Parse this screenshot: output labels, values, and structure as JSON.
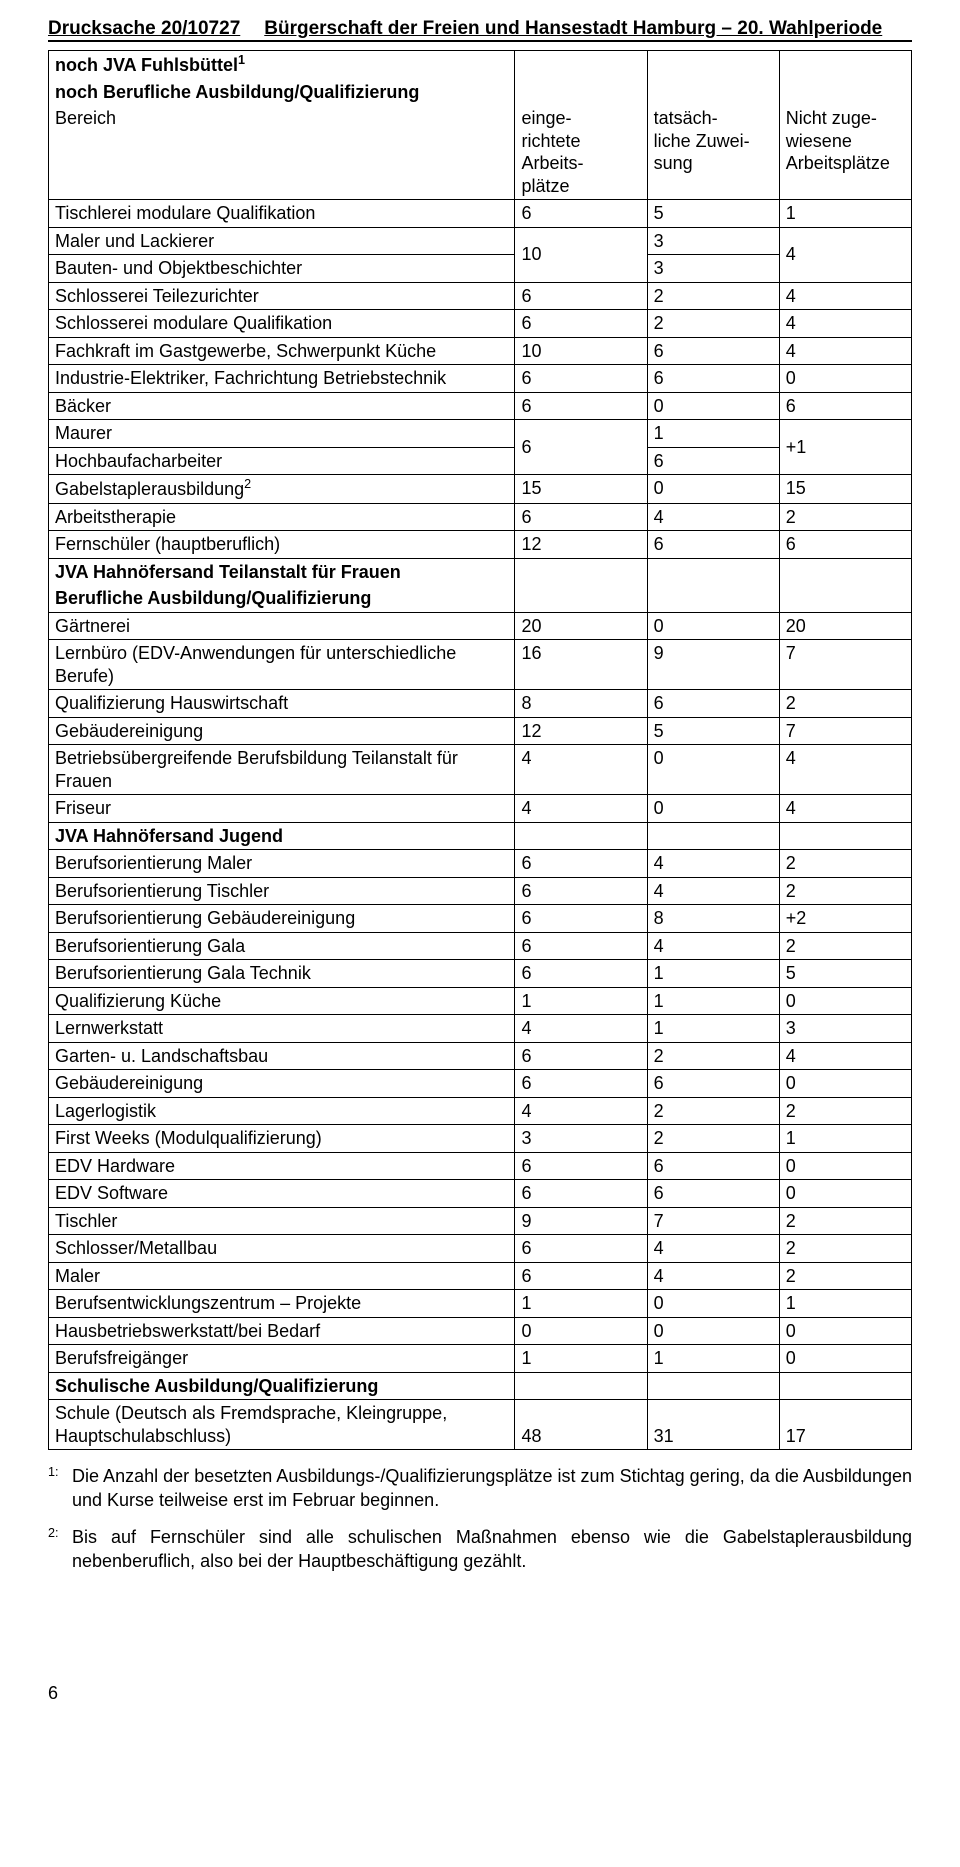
{
  "header": {
    "left": "Drucksache 20/10727",
    "right": "Bürgerschaft der Freien und Hansestadt Hamburg – 20. Wahlperiode"
  },
  "columns": {
    "c1": "Bereich",
    "c2": "einge-\nrichtete Arbeits-\nplätze",
    "c3": "tatsäch-\nliche Zuwei-\nsung",
    "c4": "Nicht zuge-\nwiesene Arbeitsplätze"
  },
  "section_titles": {
    "s1a": "noch JVA Fuhlsbüttel",
    "s1a_sup": "1",
    "s1b": "noch Berufliche Ausbildung/Qualifizierung",
    "s2a": "JVA Hahnöfersand Teilanstalt für Frauen",
    "s2b": "Berufliche Ausbildung/Qualifizierung",
    "s3": "JVA Hahnöfersand Jugend",
    "s4": "Schulische Ausbildung/Qualifizierung"
  },
  "rows": {
    "r01": {
      "label": "Tischlerei modulare Qualifikation",
      "c2": "6",
      "c3": "5",
      "c4": "1"
    },
    "r02a": {
      "label": "Maler und Lackierer",
      "c3": "3"
    },
    "r02b": {
      "label": "Bauten- und Objektbeschichter",
      "c2": "10",
      "c3": "3",
      "c4": "4"
    },
    "r03": {
      "label": "Schlosserei Teilezurichter",
      "c2": "6",
      "c3": "2",
      "c4": "4"
    },
    "r04": {
      "label": "Schlosserei modulare Qualifikation",
      "c2": "6",
      "c3": "2",
      "c4": "4"
    },
    "r05": {
      "label": "Fachkraft im Gastgewerbe, Schwerpunkt Küche",
      "c2": "10",
      "c3": "6",
      "c4": "4"
    },
    "r06": {
      "label": "Industrie-Elektriker, Fachrichtung Betriebstechnik",
      "c2": "6",
      "c3": "6",
      "c4": "0"
    },
    "r07": {
      "label": "Bäcker",
      "c2": "6",
      "c3": "0",
      "c4": "6"
    },
    "r08a": {
      "label": "Maurer",
      "c3": "1"
    },
    "r08b": {
      "label": "Hochbaufacharbeiter",
      "c2": "6",
      "c3": "6",
      "c4": "+1"
    },
    "r09": {
      "label": "Gabelstaplerausbildung",
      "sup": "2",
      "c2": "15",
      "c3": "0",
      "c4": "15"
    },
    "r10": {
      "label": "Arbeitstherapie",
      "c2": "6",
      "c3": "4",
      "c4": "2"
    },
    "r11": {
      "label": "Fernschüler (hauptberuflich)",
      "c2": "12",
      "c3": "6",
      "c4": "6"
    },
    "r20": {
      "label": "Gärtnerei",
      "c2": "20",
      "c3": "0",
      "c4": "20"
    },
    "r21": {
      "label": "Lernbüro (EDV-Anwendungen für unterschiedliche Berufe)",
      "c2": "16",
      "c3": "9",
      "c4": "7"
    },
    "r22": {
      "label": "Qualifizierung Hauswirtschaft",
      "c2": "8",
      "c3": "6",
      "c4": "2"
    },
    "r23": {
      "label": "Gebäudereinigung",
      "c2": "12",
      "c3": "5",
      "c4": "7"
    },
    "r24": {
      "label": "Betriebsübergreifende Berufsbildung Teilanstalt für Frauen",
      "c2": "4",
      "c3": "0",
      "c4": "4"
    },
    "r25": {
      "label": "Friseur",
      "c2": "4",
      "c3": "0",
      "c4": "4"
    },
    "r30": {
      "label": "Berufsorientierung Maler",
      "c2": "6",
      "c3": "4",
      "c4": "2"
    },
    "r31": {
      "label": "Berufsorientierung Tischler",
      "c2": "6",
      "c3": "4",
      "c4": "2"
    },
    "r32": {
      "label": "Berufsorientierung Gebäudereinigung",
      "c2": "6",
      "c3": "8",
      "c4": "+2"
    },
    "r33": {
      "label": "Berufsorientierung Gala",
      "c2": "6",
      "c3": "4",
      "c4": "2"
    },
    "r34": {
      "label": "Berufsorientierung Gala Technik",
      "c2": "6",
      "c3": "1",
      "c4": "5"
    },
    "r35": {
      "label": "Qualifizierung Küche",
      "c2": "1",
      "c3": "1",
      "c4": "0"
    },
    "r36": {
      "label": "Lernwerkstatt",
      "c2": "4",
      "c3": "1",
      "c4": "3"
    },
    "r37": {
      "label": "Garten- u. Landschaftsbau",
      "c2": "6",
      "c3": "2",
      "c4": "4"
    },
    "r38": {
      "label": "Gebäudereinigung",
      "c2": "6",
      "c3": "6",
      "c4": "0"
    },
    "r39": {
      "label": "Lagerlogistik",
      "c2": "4",
      "c3": "2",
      "c4": "2"
    },
    "r40": {
      "label": "First Weeks (Modulqualifizierung)",
      "c2": "3",
      "c3": "2",
      "c4": "1"
    },
    "r41": {
      "label": "EDV Hardware",
      "c2": "6",
      "c3": "6",
      "c4": "0"
    },
    "r42": {
      "label": "EDV Software",
      "c2": "6",
      "c3": "6",
      "c4": "0"
    },
    "r43": {
      "label": "Tischler",
      "c2": "9",
      "c3": "7",
      "c4": "2"
    },
    "r44": {
      "label": "Schlosser/Metallbau",
      "c2": "6",
      "c3": "4",
      "c4": "2"
    },
    "r45": {
      "label": "Maler",
      "c2": "6",
      "c3": "4",
      "c4": "2"
    },
    "r46": {
      "label": "Berufsentwicklungszentrum – Projekte",
      "c2": "1",
      "c3": "0",
      "c4": "1"
    },
    "r47": {
      "label": "Hausbetriebswerkstatt/bei Bedarf",
      "c2": "0",
      "c3": "0",
      "c4": "0"
    },
    "r48": {
      "label": "Berufsfreigänger",
      "c2": "1",
      "c3": "1",
      "c4": "0"
    },
    "r50": {
      "label": "Schule (Deutsch als Fremdsprache, Kleingruppe, Hauptschulabschluss)",
      "c2": "48",
      "c3": "31",
      "c4": "17"
    }
  },
  "footnotes": {
    "f1": {
      "marker": "1:",
      "text": "Die Anzahl der besetzten Ausbildungs-/Qualifizierungsplätze ist zum Stichtag gering, da die Ausbildungen und Kurse teilweise erst im Februar beginnen."
    },
    "f2": {
      "marker": "2:",
      "text": "Bis auf Fernschüler sind alle schulischen Maßnahmen ebenso wie die Gabelstaplerausbildung nebenberuflich, also bei der Hauptbeschäftigung gezählt."
    }
  },
  "page_number": "6"
}
